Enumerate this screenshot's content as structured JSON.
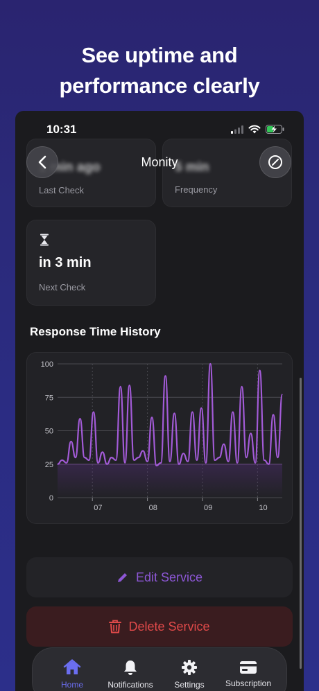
{
  "headline": {
    "line1": "See uptime and",
    "line2": "performance clearly"
  },
  "status_bar": {
    "time": "10:31",
    "icons": [
      "cellular-signal-icon",
      "wifi-icon",
      "battery-charging-icon"
    ]
  },
  "nav": {
    "title": "Monity",
    "back_icon": "chevron-left-icon",
    "edit_icon": "compass-slash-icon"
  },
  "stats": [
    {
      "value": "1 min ago",
      "label": "Last Check"
    },
    {
      "value": "5 min",
      "label": "Frequency"
    },
    {
      "value": "in 3 min",
      "label": "Next Check",
      "icon": "hourglass-icon"
    }
  ],
  "chart_section": {
    "title": "Response Time History"
  },
  "chart_data": {
    "type": "line",
    "title": "",
    "xlabel": "",
    "ylabel": "",
    "ylim": [
      0,
      100
    ],
    "yticks": [
      0,
      25,
      50,
      75,
      100
    ],
    "xticks": [
      "07",
      "08",
      "09",
      "10"
    ],
    "line_color": "#a35bd8",
    "threshold": 25,
    "series": [
      {
        "values": [
          25,
          28,
          26,
          42,
          30,
          59,
          30,
          28,
          64,
          26,
          34,
          25,
          30,
          28,
          83,
          26,
          84,
          28,
          30,
          35,
          27,
          60,
          24,
          26,
          91,
          27,
          63,
          25,
          33,
          27,
          64,
          28,
          67,
          26,
          100,
          28,
          30,
          40,
          27,
          64,
          26,
          83,
          30,
          48,
          26,
          95,
          28,
          25,
          62,
          30,
          77
        ]
      }
    ]
  },
  "actions": {
    "edit_label": "Edit Service",
    "delete_label": "Delete Service"
  },
  "tabbar": {
    "tabs": [
      {
        "label": "Home",
        "icon": "house-icon",
        "active": true
      },
      {
        "label": "Notifications",
        "icon": "bell-icon",
        "active": false
      },
      {
        "label": "Settings",
        "icon": "gear-icon",
        "active": false
      },
      {
        "label": "Subscription",
        "icon": "credit-card-icon",
        "active": false
      }
    ]
  },
  "colors": {
    "accent": "#8d57d6",
    "danger": "#e24a4a",
    "active_tab": "#6b6ef0"
  }
}
